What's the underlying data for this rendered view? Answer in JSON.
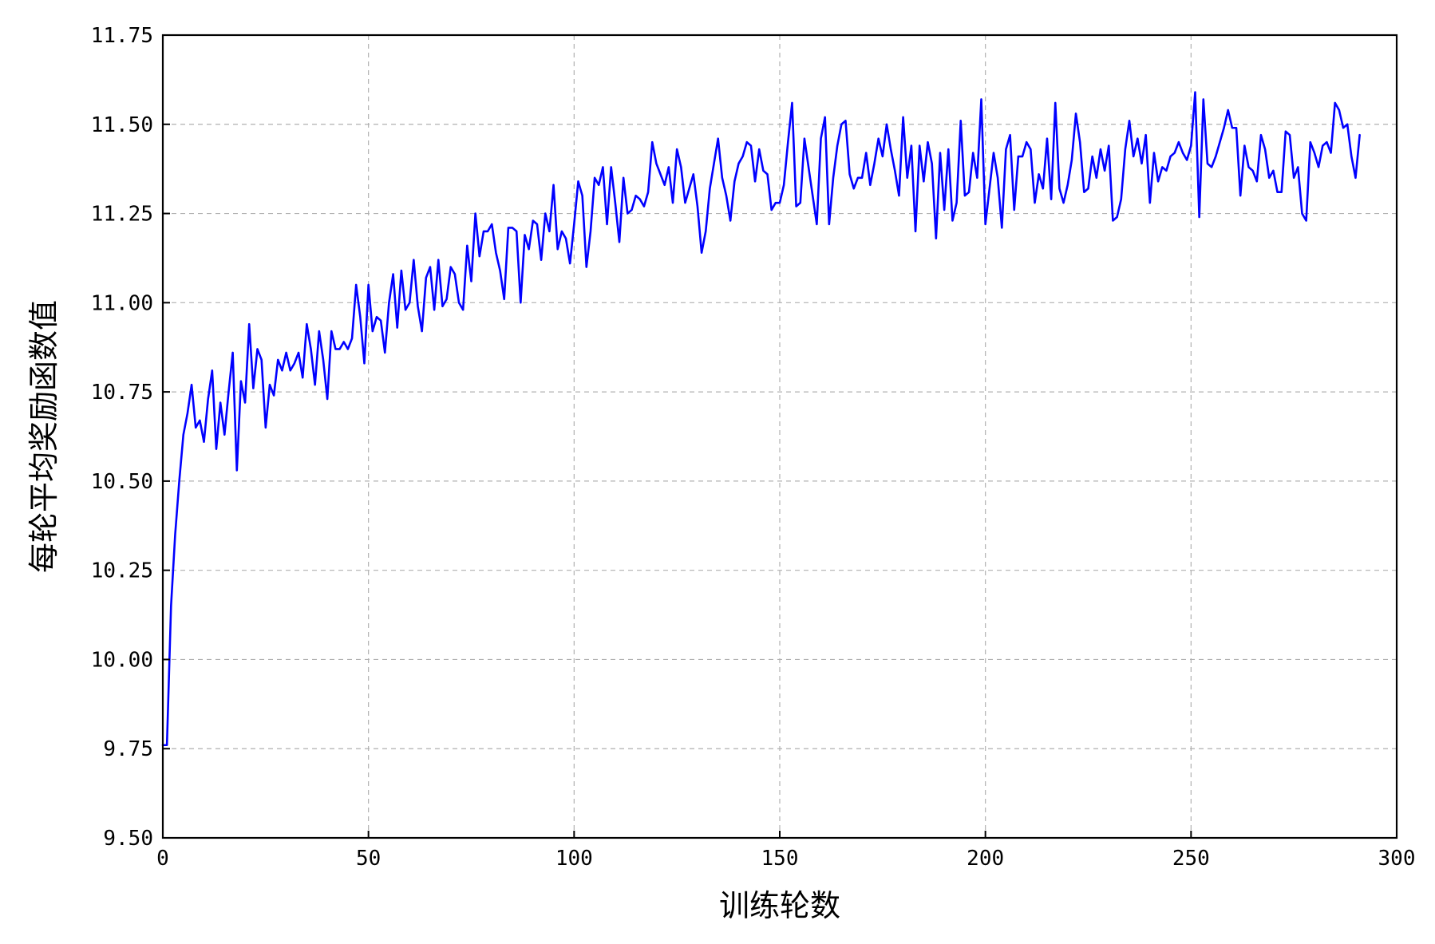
{
  "chart_data": {
    "type": "line",
    "title": "",
    "xlabel": "训练轮数",
    "ylabel": "每轮平均奖励函数值",
    "xlim": [
      0,
      300
    ],
    "ylim": [
      9.5,
      11.75
    ],
    "xticks": [
      0,
      50,
      100,
      150,
      200,
      250,
      300
    ],
    "yticks": [
      9.5,
      9.75,
      10.0,
      10.25,
      10.5,
      10.75,
      11.0,
      11.25,
      11.5,
      11.75
    ],
    "ytick_labels": [
      "9.50",
      "9.75",
      "10.00",
      "10.25",
      "10.50",
      "10.75",
      "11.00",
      "11.25",
      "11.50",
      "11.75"
    ],
    "xtick_labels": [
      "0",
      "50",
      "100",
      "150",
      "200",
      "250",
      "300"
    ],
    "grid": true,
    "line_color": "#0000ff",
    "series": [
      {
        "values": [
          9.76,
          9.76,
          10.15,
          10.35,
          10.5,
          10.63,
          10.69,
          10.77,
          10.65,
          10.67,
          10.61,
          10.73,
          10.81,
          10.59,
          10.72,
          10.63,
          10.75,
          10.86,
          10.53,
          10.78,
          10.72,
          10.94,
          10.76,
          10.87,
          10.84,
          10.65,
          10.77,
          10.74,
          10.84,
          10.81,
          10.86,
          10.81,
          10.83,
          10.86,
          10.79,
          10.94,
          10.87,
          10.77,
          10.92,
          10.84,
          10.73,
          10.92,
          10.87,
          10.87,
          10.89,
          10.87,
          10.9,
          11.05,
          10.96,
          10.83,
          11.05,
          10.92,
          10.96,
          10.95,
          10.86,
          11.0,
          11.08,
          10.93,
          11.09,
          10.98,
          11.0,
          11.12,
          10.99,
          10.92,
          11.07,
          11.1,
          10.98,
          11.12,
          10.99,
          11.01,
          11.1,
          11.08,
          11.0,
          10.98,
          11.16,
          11.06,
          11.25,
          11.13,
          11.2,
          11.2,
          11.22,
          11.14,
          11.09,
          11.01,
          11.21,
          11.21,
          11.2,
          11.0,
          11.19,
          11.15,
          11.23,
          11.22,
          11.12,
          11.25,
          11.2,
          11.33,
          11.15,
          11.2,
          11.18,
          11.11,
          11.22,
          11.34,
          11.3,
          11.1,
          11.2,
          11.35,
          11.33,
          11.38,
          11.22,
          11.38,
          11.28,
          11.17,
          11.35,
          11.25,
          11.26,
          11.3,
          11.29,
          11.27,
          11.31,
          11.45,
          11.39,
          11.36,
          11.33,
          11.38,
          11.28,
          11.43,
          11.38,
          11.28,
          11.32,
          11.36,
          11.27,
          11.14,
          11.2,
          11.32,
          11.39,
          11.46,
          11.35,
          11.3,
          11.23,
          11.34,
          11.39,
          11.41,
          11.45,
          11.44,
          11.34,
          11.43,
          11.37,
          11.36,
          11.26,
          11.28,
          11.28,
          11.33,
          11.45,
          11.56,
          11.27,
          11.28,
          11.46,
          11.38,
          11.3,
          11.22,
          11.46,
          11.52,
          11.22,
          11.35,
          11.44,
          11.5,
          11.51,
          11.36,
          11.32,
          11.35,
          11.35,
          11.42,
          11.33,
          11.39,
          11.46,
          11.41,
          11.5,
          11.43,
          11.37,
          11.3,
          11.52,
          11.35,
          11.44,
          11.2,
          11.44,
          11.34,
          11.45,
          11.39,
          11.18,
          11.42,
          11.26,
          11.43,
          11.23,
          11.28,
          11.51,
          11.3,
          11.31,
          11.42,
          11.35,
          11.57,
          11.22,
          11.32,
          11.42,
          11.35,
          11.21,
          11.43,
          11.47,
          11.26,
          11.41,
          11.41,
          11.45,
          11.43,
          11.28,
          11.36,
          11.32,
          11.46,
          11.29,
          11.56,
          11.32,
          11.28,
          11.33,
          11.4,
          11.53,
          11.45,
          11.31,
          11.32,
          11.41,
          11.35,
          11.43,
          11.37,
          11.44,
          11.23,
          11.24,
          11.29,
          11.43,
          11.51,
          11.41,
          11.46,
          11.39,
          11.47,
          11.28,
          11.42,
          11.34,
          11.38,
          11.37,
          11.41,
          11.42,
          11.45,
          11.42,
          11.4,
          11.44,
          11.59,
          11.24,
          11.57,
          11.39,
          11.38,
          11.41,
          11.45,
          11.49,
          11.54,
          11.49,
          11.49,
          11.3,
          11.44,
          11.38,
          11.37,
          11.34,
          11.47,
          11.43,
          11.35,
          11.37,
          11.31,
          11.31,
          11.48,
          11.47,
          11.35,
          11.38,
          11.25,
          11.23,
          11.45,
          11.42,
          11.38,
          11.44,
          11.45,
          11.42,
          11.56,
          11.54,
          11.49,
          11.5,
          11.41,
          11.35,
          11.47
        ]
      }
    ]
  }
}
